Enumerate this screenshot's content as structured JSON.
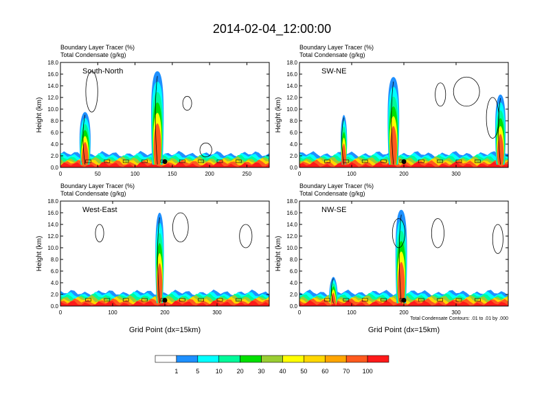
{
  "title": "2014-02-04_12:00:00",
  "chart_data": [
    {
      "type": "heatmap",
      "label": "South-North",
      "title_line1": "Boundary Layer Tracer    (%)",
      "title_line2": "Total Condensate    (g/kg)",
      "ylabel": "Height (km)",
      "xlabel": "",
      "xlim": [
        0,
        280
      ],
      "ylim": [
        0,
        18
      ],
      "xticks": [
        0,
        50,
        100,
        150,
        200,
        250
      ],
      "yticks": [
        "0.0",
        "2.0",
        "4.0",
        "6.0",
        "8.0",
        "10.0",
        "12.0",
        "14.0",
        "16.0",
        "18.0"
      ],
      "marker": {
        "x": 140,
        "y": 1.0
      },
      "plumes": [
        {
          "x": 33,
          "top": 9.5,
          "w": 6
        },
        {
          "x": 130,
          "top": 16.5,
          "w": 7
        }
      ],
      "cloud_contours": [
        {
          "x": 42,
          "y": 13.0,
          "rx": 8,
          "ry": 3.5
        },
        {
          "x": 170,
          "y": 11.0,
          "rx": 6,
          "ry": 1.2
        },
        {
          "x": 195,
          "y": 3.0,
          "rx": 8,
          "ry": 1.2
        }
      ]
    },
    {
      "type": "heatmap",
      "label": "SW-NE",
      "title_line1": "Boundary Layer Tracer    (%)",
      "title_line2": "Total Condensate    (g/kg)",
      "ylabel": "Height (km)",
      "xlabel": "",
      "xlim": [
        0,
        400
      ],
      "ylim": [
        0,
        18
      ],
      "xticks": [
        0,
        100,
        200,
        300
      ],
      "yticks": [
        "0.0",
        "2.0",
        "4.0",
        "6.0",
        "8.0",
        "10.0",
        "12.0",
        "14.0",
        "16.0",
        "18.0"
      ],
      "marker": {
        "x": 200,
        "y": 1.0
      },
      "plumes": [
        {
          "x": 85,
          "top": 9.0,
          "w": 4
        },
        {
          "x": 180,
          "top": 15.5,
          "w": 9
        },
        {
          "x": 385,
          "top": 12.5,
          "w": 8
        }
      ],
      "cloud_contours": [
        {
          "x": 270,
          "y": 12.5,
          "rx": 10,
          "ry": 2.0
        },
        {
          "x": 320,
          "y": 13.0,
          "rx": 25,
          "ry": 2.5
        },
        {
          "x": 370,
          "y": 8.5,
          "rx": 12,
          "ry": 3.5
        }
      ]
    },
    {
      "type": "heatmap",
      "label": "West-East",
      "title_line1": "Boundary Layer Tracer    (%)",
      "title_line2": "Total Condensate    (g/kg)",
      "ylabel": "Height (km)",
      "xlabel": "Grid Point (dx=15km)",
      "xlim": [
        0,
        400
      ],
      "ylim": [
        0,
        18
      ],
      "xticks": [
        0,
        100,
        200,
        300
      ],
      "yticks": [
        "0.0",
        "2.0",
        "4.0",
        "6.0",
        "8.0",
        "10.0",
        "12.0",
        "14.0",
        "16.0",
        "18.0"
      ],
      "marker": {
        "x": 200,
        "y": 1.0
      },
      "plumes": [
        {
          "x": 190,
          "top": 16.0,
          "w": 6
        }
      ],
      "cloud_contours": [
        {
          "x": 75,
          "y": 12.5,
          "rx": 8,
          "ry": 1.5
        },
        {
          "x": 230,
          "y": 13.5,
          "rx": 15,
          "ry": 2.5
        },
        {
          "x": 355,
          "y": 12.0,
          "rx": 12,
          "ry": 2.0
        }
      ]
    },
    {
      "type": "heatmap",
      "label": "NW-SE",
      "title_line1": "Boundary Layer Tracer    (%)",
      "title_line2": "Total Condensate    (g/kg)",
      "ylabel": "Height (km)",
      "xlabel": "Grid Point (dx=15km)",
      "xlim": [
        0,
        400
      ],
      "ylim": [
        0,
        18
      ],
      "xticks": [
        0,
        100,
        200,
        300
      ],
      "yticks": [
        "0.0",
        "2.0",
        "4.0",
        "6.0",
        "8.0",
        "10.0",
        "12.0",
        "14.0",
        "16.0",
        "18.0"
      ],
      "marker": {
        "x": 200,
        "y": 1.0
      },
      "plumes": [
        {
          "x": 65,
          "top": 5.0,
          "w": 6
        },
        {
          "x": 195,
          "top": 16.5,
          "w": 9
        }
      ],
      "cloud_contours": [
        {
          "x": 190,
          "y": 12.5,
          "rx": 12,
          "ry": 2.5
        },
        {
          "x": 265,
          "y": 12.5,
          "rx": 12,
          "ry": 2.5
        },
        {
          "x": 380,
          "y": 11.5,
          "rx": 10,
          "ry": 2.5
        }
      ],
      "footnote": "Total Condensate Contours: .01 to .01 by .000"
    }
  ],
  "colorbar": {
    "colors": [
      "#ffffff",
      "#1e90ff",
      "#00ffff",
      "#00fa9a",
      "#00e000",
      "#9acd32",
      "#ffff00",
      "#ffd700",
      "#ffa500",
      "#ff5a1e",
      "#ff1a1a"
    ],
    "labels": [
      "1",
      "5",
      "10",
      "20",
      "30",
      "40",
      "50",
      "60",
      "70",
      "100"
    ]
  }
}
